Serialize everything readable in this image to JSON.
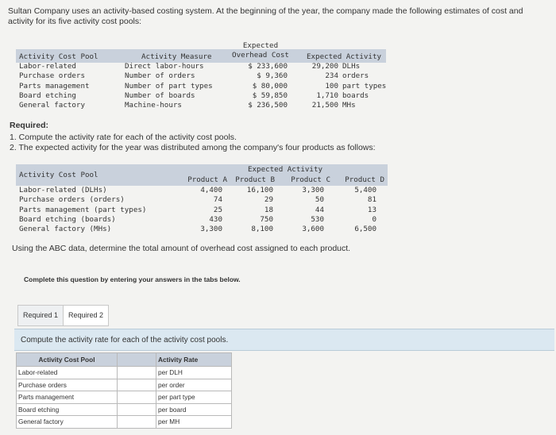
{
  "intro": "Sultan Company uses an activity-based costing system. At the beginning of the year, the company made the following estimates of cost and activity for its five activity cost pools:",
  "pools_table": {
    "headers": {
      "pool": "Activity Cost Pool",
      "measure": "Activity Measure",
      "overhead_line1": "Expected",
      "overhead_line2": "Overhead Cost",
      "activity": "Expected Activity"
    },
    "rows": [
      {
        "pool": "Labor-related",
        "measure": "Direct labor-hours",
        "cost": "$ 233,600",
        "qty": "29,200",
        "unit": "DLHs"
      },
      {
        "pool": "Purchase orders",
        "measure": "Number of orders",
        "cost": "$ 9,360",
        "qty": "234",
        "unit": "orders"
      },
      {
        "pool": "Parts management",
        "measure": "Number of part types",
        "cost": "$ 80,000",
        "qty": "100",
        "unit": "part types"
      },
      {
        "pool": "Board etching",
        "measure": "Number of boards",
        "cost": "$ 59,850",
        "qty": "1,710",
        "unit": "boards"
      },
      {
        "pool": "General factory",
        "measure": "Machine-hours",
        "cost": "$ 236,500",
        "qty": "21,500",
        "unit": "MHs"
      }
    ]
  },
  "required": {
    "title": "Required:",
    "item1": "1. Compute the activity rate for each of the activity cost pools.",
    "item2": "2. The expected activity for the year was distributed among the company's four products as follows:"
  },
  "products_table": {
    "pool_header": "Activity Cost Pool",
    "expected_header": "Expected Activity",
    "products": [
      "Product A",
      "Product B",
      "Product C",
      "Product D"
    ],
    "rows": [
      {
        "pool": "Labor-related (DLHs)",
        "values": [
          "4,400",
          "16,100",
          "3,300",
          "5,400"
        ]
      },
      {
        "pool": "Purchase orders (orders)",
        "values": [
          "74",
          "29",
          "50",
          "81"
        ]
      },
      {
        "pool": "Parts management (part types)",
        "values": [
          "25",
          "18",
          "44",
          "13"
        ]
      },
      {
        "pool": "Board etching (boards)",
        "values": [
          "430",
          "750",
          "530",
          "0"
        ]
      },
      {
        "pool": "General factory (MHs)",
        "values": [
          "3,300",
          "8,100",
          "3,600",
          "6,500"
        ]
      }
    ]
  },
  "abc_text": "Using the ABC data, determine the total amount of overhead cost assigned to each product.",
  "instruction": "Complete this question by entering your answers in the tabs below.",
  "tabs": [
    "Required 1",
    "Required 2"
  ],
  "banner": "Compute the activity rate for each of the activity cost pools.",
  "answer_table": {
    "col1": "Activity Cost Pool",
    "col2": "Activity Rate",
    "rows": [
      {
        "pool": "Labor-related",
        "unit": "per DLH",
        "value": ""
      },
      {
        "pool": "Purchase orders",
        "unit": "per order",
        "value": ""
      },
      {
        "pool": "Parts management",
        "unit": "per part type",
        "value": ""
      },
      {
        "pool": "Board etching",
        "unit": "per board",
        "value": ""
      },
      {
        "pool": "General factory",
        "unit": "per MH",
        "value": ""
      }
    ]
  }
}
